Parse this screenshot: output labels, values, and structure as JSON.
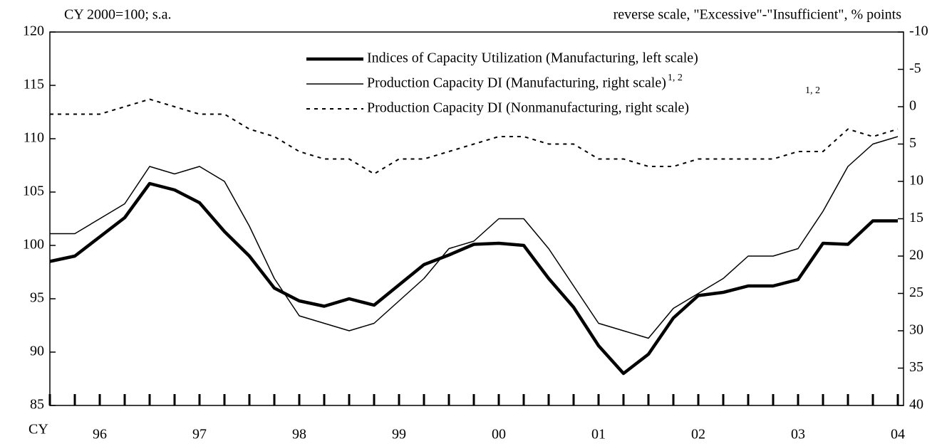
{
  "chart_data": {
    "type": "line",
    "y_axis_label": "CY 2000=100; s.a.",
    "y2_axis_label": "reverse scale, \"Excessive\"-\"Insufficient\", % points",
    "x_axis_label": "CY",
    "categories": [
      null,
      null,
      "96",
      null,
      null,
      null,
      "97",
      null,
      null,
      null,
      "98",
      null,
      null,
      null,
      "99",
      null,
      null,
      null,
      "00",
      null,
      null,
      null,
      "01",
      null,
      null,
      null,
      "02",
      null,
      null,
      null,
      "03",
      null,
      null,
      null,
      "04"
    ],
    "ylim": [
      85,
      120
    ],
    "yticks": [
      85,
      90,
      95,
      100,
      105,
      110,
      115,
      120
    ],
    "y2lim": [
      -10,
      40
    ],
    "y2_reverse": true,
    "y2ticks": [
      -10,
      -5,
      0,
      5,
      10,
      15,
      20,
      25,
      30,
      35,
      40
    ],
    "footnote_marks": [
      "1, 2",
      "1, 2"
    ],
    "series": [
      {
        "name": "Indices of Capacity Utilization (Manufacturing, left scale)",
        "color": "#000000",
        "width": 4.5,
        "dash": "none",
        "values": [
          98.5,
          99,
          100.8,
          102.6,
          105.8,
          105.2,
          104,
          101.3,
          99,
          96,
          94.8,
          94.3,
          95,
          94.4,
          96.3,
          98.2,
          99.1,
          100.1,
          100.2,
          100,
          96.9,
          94.2,
          90.6,
          88,
          89.8,
          93.2,
          95.3,
          95.6,
          96.2,
          96.2,
          96.8,
          100.2,
          100.1,
          102.3,
          102.3
        ]
      },
      {
        "name": "Production Capacity DI (Manufacturing, right scale)",
        "color": "#000000",
        "width": 1.5,
        "dash": "none",
        "axis": "y2",
        "values": [
          17,
          17,
          15,
          13,
          8,
          9,
          8,
          10,
          16,
          23,
          28,
          29,
          30,
          29,
          26,
          23,
          19,
          18,
          15,
          15,
          19,
          24,
          29,
          30,
          31,
          27,
          25,
          23,
          20,
          20,
          19,
          14,
          8,
          5,
          4
        ]
      },
      {
        "name": "Production Capacity DI (Nonmanufacturing, right scale)",
        "color": "#000000",
        "width": 2,
        "dash": "5,6",
        "axis": "y2",
        "values": [
          1,
          1,
          1,
          0,
          -1,
          0,
          1,
          1,
          3,
          4,
          6,
          7,
          7,
          9,
          7,
          7,
          6,
          5,
          4,
          4,
          5,
          5,
          7,
          7,
          8,
          8,
          7,
          7,
          7,
          7,
          6,
          6,
          3,
          4,
          3
        ]
      }
    ]
  }
}
